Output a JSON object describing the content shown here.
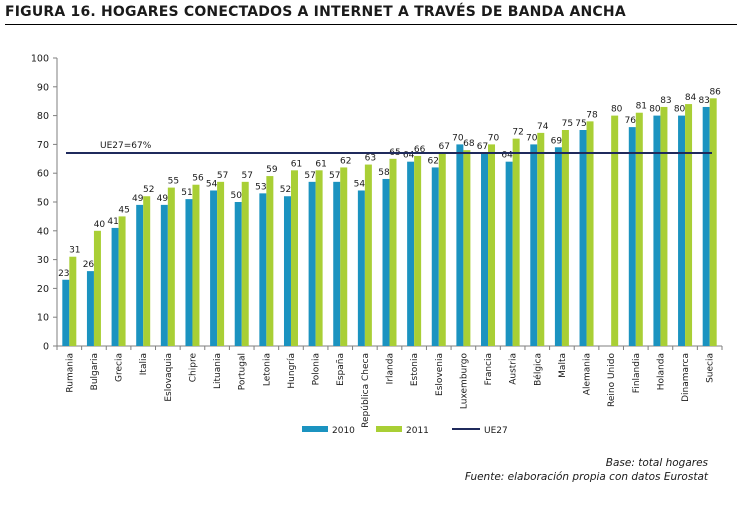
{
  "figure": {
    "title": "FIGURA 16. HOGARES CONECTADOS A INTERNET A TRAVÉS DE BANDA ANCHA",
    "base_note": "Base: total hogares",
    "source_note": "Fuente: elaboración propia con datos Eurostat"
  },
  "chart_data": {
    "type": "bar",
    "title": "",
    "xlabel": "",
    "ylabel": "",
    "ylim": [
      0,
      100
    ],
    "yticks": [
      0,
      10,
      20,
      30,
      40,
      50,
      60,
      70,
      80,
      90,
      100
    ],
    "grid": false,
    "legend_position": "bottom",
    "categories": [
      "Rumania",
      "Bulgaria",
      "Grecia",
      "Italia",
      "Eslovaquia",
      "Chipre",
      "Lituania",
      "Portugal",
      "Letonia",
      "Hungría",
      "Polonia",
      "España",
      "República Checa",
      "Irlanda",
      "Estonia",
      "Eslovenia",
      "Luxemburgo",
      "Francia",
      "Austria",
      "Bélgica",
      "Malta",
      "Alemania",
      "Reino Unido",
      "Finlandia",
      "Holanda",
      "Dinamarca",
      "Suecia"
    ],
    "series": [
      {
        "name": "2010",
        "color": "#1b93c0",
        "values": [
          23,
          26,
          41,
          49,
          49,
          51,
          54,
          50,
          53,
          52,
          57,
          57,
          54,
          58,
          64,
          62,
          70,
          67,
          64,
          70,
          69,
          75,
          null,
          76,
          80,
          80,
          83
        ]
      },
      {
        "name": "2011",
        "color": "#a9cf35",
        "values": [
          31,
          40,
          45,
          52,
          55,
          56,
          57,
          57,
          59,
          61,
          61,
          62,
          63,
          65,
          66,
          67,
          68,
          70,
          72,
          74,
          75,
          78,
          80,
          81,
          83,
          84,
          86
        ]
      }
    ],
    "reference_line": {
      "name": "UE27",
      "value": 67,
      "label": "UE27=67%",
      "color": "#1f2a5c"
    }
  }
}
